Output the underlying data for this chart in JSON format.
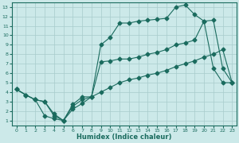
{
  "background_color": "#cce9e9",
  "line_color": "#1a6b5e",
  "grid_color": "#a8cccc",
  "xlabel": "Humidex (Indice chaleur)",
  "xlim": [
    -0.5,
    23.5
  ],
  "ylim": [
    0.5,
    13.5
  ],
  "xticks": [
    0,
    1,
    2,
    3,
    4,
    5,
    6,
    7,
    8,
    9,
    10,
    11,
    12,
    13,
    14,
    15,
    16,
    17,
    18,
    19,
    20,
    21,
    22,
    23
  ],
  "yticks": [
    1,
    2,
    3,
    4,
    5,
    6,
    7,
    8,
    9,
    10,
    11,
    12,
    13
  ],
  "line1_x": [
    0,
    1,
    2,
    3,
    4,
    5,
    6,
    7,
    8,
    9,
    10,
    11,
    12,
    13,
    14,
    15,
    16,
    17,
    18,
    19,
    20,
    21,
    22,
    23
  ],
  "line1_y": [
    4.3,
    3.7,
    3.2,
    3.0,
    1.5,
    1.0,
    2.5,
    3.2,
    3.5,
    7.2,
    7.3,
    7.5,
    7.5,
    7.7,
    8.0,
    8.2,
    8.5,
    9.0,
    9.2,
    9.5,
    11.5,
    11.6,
    6.5,
    5.0
  ],
  "line2_x": [
    0,
    1,
    2,
    3,
    4,
    5,
    6,
    7,
    8,
    9,
    10,
    11,
    12,
    13,
    14,
    15,
    16,
    17,
    18,
    19,
    20,
    21,
    22,
    23
  ],
  "line2_y": [
    4.3,
    3.7,
    3.2,
    1.5,
    1.2,
    1.0,
    2.7,
    3.5,
    3.5,
    9.0,
    9.8,
    11.3,
    11.3,
    11.5,
    11.6,
    11.7,
    11.8,
    13.0,
    13.2,
    12.2,
    11.5,
    6.5,
    5.0,
    5.0
  ],
  "line3_x": [
    0,
    1,
    2,
    3,
    4,
    5,
    6,
    7,
    8,
    9,
    10,
    11,
    12,
    13,
    14,
    15,
    16,
    17,
    18,
    19,
    20,
    21,
    22,
    23
  ],
  "line3_y": [
    4.3,
    3.7,
    3.2,
    3.0,
    1.7,
    1.0,
    2.2,
    2.8,
    3.5,
    4.0,
    4.5,
    5.0,
    5.3,
    5.5,
    5.8,
    6.0,
    6.3,
    6.7,
    7.0,
    7.3,
    7.7,
    8.0,
    8.5,
    5.0
  ],
  "marker_line1": [
    0,
    1,
    2,
    3,
    4,
    5,
    6,
    7,
    8,
    9,
    10,
    11,
    12,
    13,
    14,
    15,
    16,
    17,
    18,
    19,
    20,
    21,
    22,
    23
  ],
  "marker_line2": [
    0,
    1,
    2,
    3,
    4,
    5,
    6,
    7,
    8,
    9,
    10,
    11,
    12,
    13,
    14,
    15,
    16,
    17,
    18,
    19,
    20,
    21,
    22,
    23
  ],
  "marker_line3": [
    0,
    1,
    2,
    3,
    4,
    5,
    6,
    7,
    8,
    9,
    10,
    11,
    12,
    13,
    14,
    15,
    16,
    17,
    18,
    19,
    20,
    21,
    22,
    23
  ]
}
